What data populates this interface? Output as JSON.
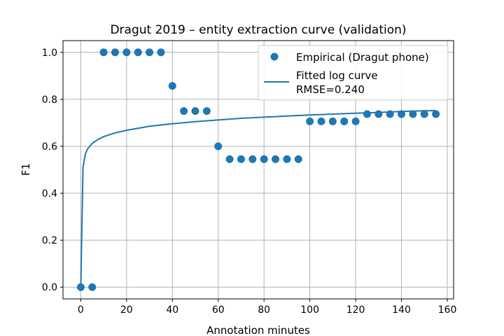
{
  "chart_data": {
    "type": "scatter",
    "title": "Dragut 2019 – entity extraction curve (validation)",
    "xlabel": "Annotation minutes",
    "ylabel": "F1",
    "xlim": [
      -7.75,
      162.75
    ],
    "ylim": [
      -0.05,
      1.05
    ],
    "xticks": [
      0,
      20,
      40,
      60,
      80,
      100,
      120,
      140,
      160
    ],
    "yticks": [
      0.0,
      0.2,
      0.4,
      0.6,
      0.8,
      1.0
    ],
    "xtick_labels": [
      "0",
      "20",
      "40",
      "60",
      "80",
      "100",
      "120",
      "140",
      "160"
    ],
    "ytick_labels": [
      "0.0",
      "0.2",
      "0.4",
      "0.6",
      "0.8",
      "1.0"
    ],
    "grid": true,
    "legend_position": "top-right",
    "colors": {
      "series": "#1f77b4"
    },
    "series": [
      {
        "name": "Empirical (Dragut phone)",
        "kind": "scatter",
        "x": [
          0,
          5,
          10,
          15,
          20,
          25,
          30,
          35,
          40,
          45,
          50,
          55,
          60,
          65,
          70,
          75,
          80,
          85,
          90,
          95,
          100,
          105,
          110,
          115,
          120,
          125,
          130,
          135,
          140,
          145,
          150,
          155
        ],
        "y": [
          0.0,
          0.0,
          1.0,
          1.0,
          1.0,
          1.0,
          1.0,
          1.0,
          0.857,
          0.75,
          0.75,
          0.75,
          0.6,
          0.545,
          0.545,
          0.545,
          0.545,
          0.545,
          0.545,
          0.545,
          0.706,
          0.706,
          0.706,
          0.706,
          0.706,
          0.737,
          0.737,
          0.737,
          0.737,
          0.737,
          0.737,
          0.737
        ]
      },
      {
        "name": "Fitted log curve\nRMSE=0.240",
        "kind": "line",
        "x": [
          0,
          1,
          2,
          3,
          5,
          7.5,
          10,
          15,
          20,
          30,
          40,
          50,
          60,
          70,
          80,
          90,
          100,
          110,
          120,
          130,
          140,
          150,
          155
        ],
        "y": [
          0.0,
          0.51,
          0.567,
          0.589,
          0.612,
          0.629,
          0.641,
          0.657,
          0.668,
          0.685,
          0.696,
          0.705,
          0.712,
          0.719,
          0.724,
          0.729,
          0.733,
          0.737,
          0.741,
          0.744,
          0.748,
          0.751,
          0.752
        ]
      }
    ]
  }
}
